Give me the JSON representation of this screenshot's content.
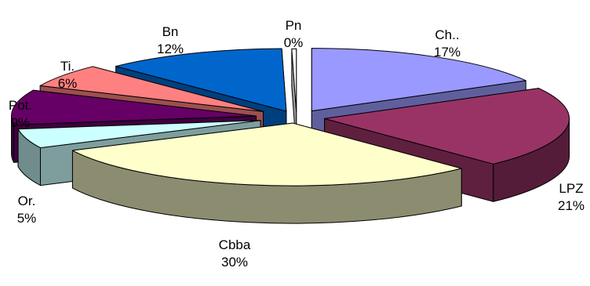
{
  "chart_data": {
    "type": "pie",
    "style": "3d-exploded",
    "legend": "none",
    "slices": [
      {
        "label": "Ch..",
        "percent_label": "17%",
        "value": 17,
        "color": "#9999ff"
      },
      {
        "label": "LPZ",
        "percent_label": "21%",
        "value": 21,
        "color": "#993366"
      },
      {
        "label": "Cbba",
        "percent_label": "30%",
        "value": 30,
        "color": "#ffffcc"
      },
      {
        "label": "Or.",
        "percent_label": "5%",
        "value": 5,
        "color": "#ccffff"
      },
      {
        "label": "Pot.",
        "percent_label": "9%",
        "value": 9,
        "color": "#660066"
      },
      {
        "label": "Ti.",
        "percent_label": "6%",
        "value": 6,
        "color": "#ff8080"
      },
      {
        "label": "Bn",
        "percent_label": "12%",
        "value": 12,
        "color": "#0066cc"
      },
      {
        "label": "Pn",
        "percent_label": "0%",
        "value": 0.3,
        "color": "#ffffff"
      }
    ]
  }
}
